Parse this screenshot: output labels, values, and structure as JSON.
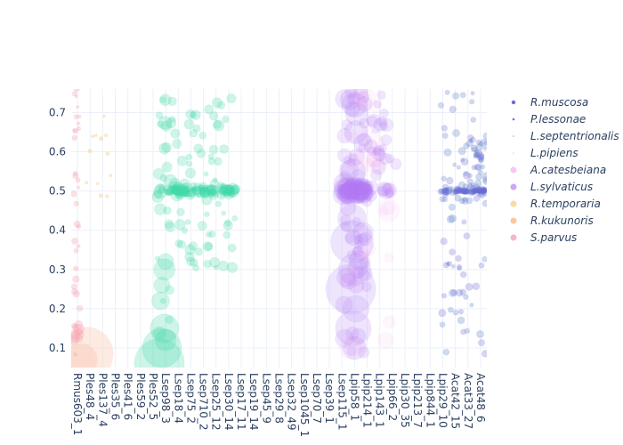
{
  "chart_data": {
    "type": "scatter",
    "title": "",
    "xlabel": "",
    "ylabel": "",
    "ylim": [
      0.05,
      0.76
    ],
    "y_ticks": [
      0.1,
      0.2,
      0.3,
      0.4,
      0.5,
      0.6,
      0.7
    ],
    "grid": true,
    "legend_placement": "right",
    "categories": [
      "Rmus603_1",
      "Ples48_4",
      "Ples137_4",
      "Ples35_6",
      "Ples41_6",
      "Ples59_2",
      "Ples52_5",
      "Lsep98_3",
      "Lsep18_4",
      "Lsep75_2",
      "Lsep710_2",
      "Lsep25_12",
      "Lsep30_14",
      "Lsep17_11",
      "Lsep19_14",
      "Lsep45_9",
      "Lsep29_8",
      "Lsep32_49",
      "Lsep1045_1",
      "Lsep70_7",
      "Lsep39_1",
      "Lsep115_1",
      "Lpip58_1",
      "Lpip214_1",
      "Lpip143_1",
      "Lpip66_2",
      "Lpip30_35",
      "Lpip213_7",
      "Lpip844_1",
      "Lpip29_10",
      "Acat42_15",
      "Acat33_27",
      "Acat48_6"
    ],
    "series": [
      {
        "name": "R.muscosa",
        "color": "#6a6ad8",
        "marker": "circle",
        "group": "Acat",
        "x_range": [
          29.2,
          32.9
        ],
        "core_y": 0.5,
        "y_range": [
          0.08,
          0.75
        ]
      },
      {
        "name": "P.lessonae",
        "color": "#5a7fc9",
        "marker": "circle",
        "group": "Acat-small",
        "x_range": [
          29.5,
          32.5
        ],
        "core_y": 0.5,
        "y_range": [
          0.1,
          0.75
        ]
      },
      {
        "name": "L.septentrionalis",
        "color": "#3fd9a8",
        "marker": "circle",
        "group": "Lsep",
        "x_range": [
          5.4,
          13.2
        ],
        "core_y": 0.5,
        "y_range": [
          0.06,
          0.75
        ]
      },
      {
        "name": "L.pipiens",
        "color": "#b9e9a0",
        "marker": "circle",
        "group": "Ples-small",
        "x_range": [
          1.2,
          3.5
        ],
        "core_y": 0.5,
        "y_range": [
          0.45,
          0.72
        ]
      },
      {
        "name": "A.catesbeiana",
        "color": "#f49cf0",
        "marker": "circle",
        "group": "Lpip-light",
        "x_range": [
          21.0,
          26.0
        ],
        "core_y": 0.5,
        "y_range": [
          0.1,
          0.75
        ]
      },
      {
        "name": "L.sylvaticus",
        "color": "#b07cf5",
        "marker": "circle",
        "group": "Lpip",
        "x_range": [
          21.0,
          26.2
        ],
        "core_y": 0.5,
        "y_range": [
          0.1,
          0.75
        ]
      },
      {
        "name": "R.temporaria",
        "color": "#f7c87e",
        "marker": "circle",
        "group": "Rmus",
        "x_range": [
          0.2,
          1.0
        ],
        "core_y": 0.5,
        "y_range": [
          0.1,
          0.2
        ]
      },
      {
        "name": "R.kukunoris",
        "color": "#f3a672",
        "marker": "circle",
        "group": "Rmus-big",
        "x_range": [
          0.0,
          0.6
        ],
        "core_y": 0.1,
        "y_range": [
          0.06,
          0.15
        ]
      },
      {
        "name": "S.parvus",
        "color": "#f7a6b5",
        "marker": "circle",
        "group": "Rmus-pink",
        "x_range": [
          0.0,
          0.8
        ],
        "core_y": 0.3,
        "y_range": [
          0.08,
          0.75
        ]
      }
    ]
  }
}
